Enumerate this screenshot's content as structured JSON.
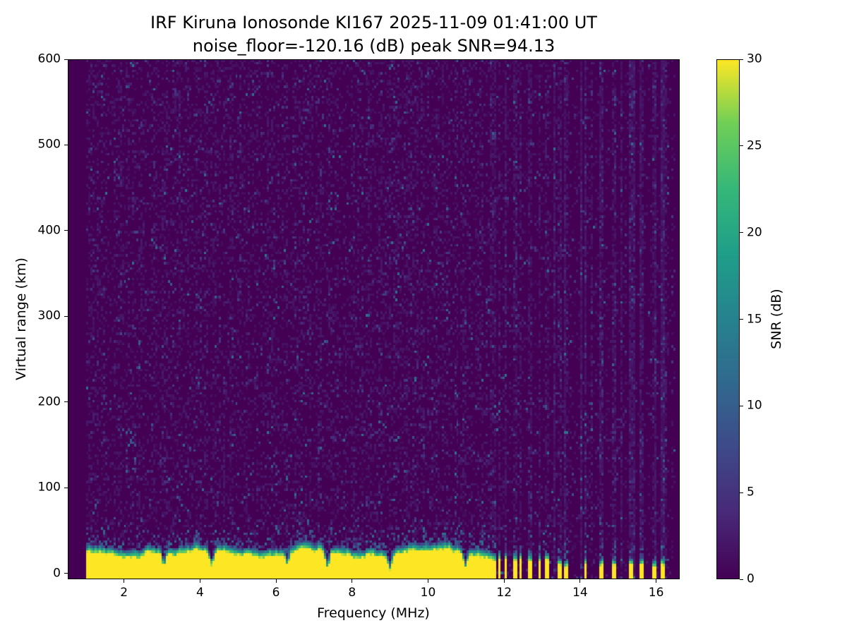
{
  "chart_data": {
    "type": "heatmap",
    "title": "IRF Kiruna Ionosonde KI167 2025-11-09 01:41:00  UT",
    "subtitle": "noise_floor=-120.16 (dB) peak SNR=94.13",
    "station": "IRF Kiruna Ionosonde KI167",
    "timestamp_ut": "2025-11-09 01:41:00",
    "noise_floor_db": -120.16,
    "peak_snr_db": 94.13,
    "xlabel": "Frequency (MHz)",
    "ylabel": "Virtual range (km)",
    "colorbar_label": "SNR (dB)",
    "colormap": "viridis",
    "x_ticks": [
      2,
      4,
      6,
      8,
      10,
      12,
      14,
      16
    ],
    "y_ticks": [
      0,
      100,
      200,
      300,
      400,
      500,
      600
    ],
    "colorbar_ticks": [
      0,
      5,
      10,
      15,
      20,
      25,
      30
    ],
    "x_axis_range": [
      0.52,
      16.62
    ],
    "y_axis_range": [
      -7,
      600
    ],
    "data_x_range": [
      1.0,
      16.5
    ],
    "color_range": [
      0,
      30
    ],
    "grid": {
      "cols": 280,
      "rows": 200
    },
    "seed": 42,
    "features": {
      "background_snr_db": 0.5,
      "noise_speckle": {
        "density": 0.05,
        "max_snr_db": 14
      },
      "ground_echo": {
        "saturated_snr_db": 30,
        "band_top_km_mean": 28,
        "band_top_km_jitter": 6,
        "transition_width_km": 9,
        "notch_freqs_mhz": [
          3.05,
          4.3,
          6.3,
          7.35,
          9.0,
          11.0
        ],
        "end_mhz": 11.65
      },
      "interference_stripes": {
        "start_mhz": 11.65,
        "dense_until_mhz": 13.2,
        "isolated_stripe_freqs_mhz": [
          13.45,
          13.6,
          14.15,
          14.55,
          14.9,
          15.35,
          15.6,
          15.95,
          16.15
        ],
        "stub_top_km": 14
      },
      "echo_trace": {
        "f_mhz": 2.2,
        "y_km_range": [
          115,
          170
        ],
        "density": 0.15
      }
    }
  }
}
